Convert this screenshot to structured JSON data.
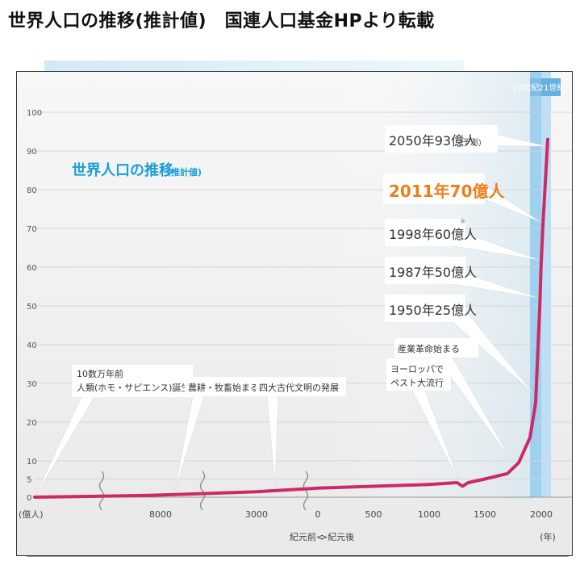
{
  "header": {
    "title": "世界人口の推移(推計値)　国連人口基金HPより転載"
  },
  "chart_data": {
    "type": "line",
    "title": "世界人口の推移",
    "title_note": "(推計値)",
    "ylabel": "(億人)",
    "xlabel_left": "紀元前<",
    "xlabel_right": ">紀元後",
    "x_unit": "(年)",
    "ylim": [
      0,
      100
    ],
    "y_ticks": [
      0,
      5,
      10,
      20,
      30,
      40,
      50,
      60,
      70,
      80,
      90,
      100
    ],
    "x_ticks": [
      "8000",
      "3000",
      "0",
      "500",
      "1000",
      "1500",
      "2000"
    ],
    "century_labels": [
      "20世紀",
      "21世紀"
    ],
    "series": [
      {
        "values_x": [
          "-100000",
          "-8000",
          "-3000",
          "0",
          "500",
          "1000",
          "1250",
          "1300",
          "1350",
          "1500",
          "1700",
          "1800",
          "1900",
          "1950",
          "1987",
          "1998",
          "2011",
          "2050"
        ],
        "values_y": [
          0,
          0.5,
          1.5,
          2.5,
          3.0,
          3.5,
          4.0,
          3.0,
          4.0,
          5.0,
          6.5,
          9.5,
          16,
          25,
          50,
          60,
          70,
          93
        ]
      }
    ],
    "annotations": [
      {
        "id": "sapiens",
        "lines": [
          "10数万年前",
          "人類(ホモ・サピエンス)誕生"
        ]
      },
      {
        "id": "agri",
        "lines": [
          "農耕・牧畜始まる"
        ]
      },
      {
        "id": "civ",
        "lines": [
          "四大古代文明の発展"
        ]
      },
      {
        "id": "plague",
        "lines": [
          "ヨーロッパで",
          "ペスト大流行"
        ]
      },
      {
        "id": "industrial",
        "lines": [
          "産業革命始まる"
        ]
      },
      {
        "id": "p1950",
        "lines": [
          "1950年25億人"
        ]
      },
      {
        "id": "p1987",
        "lines": [
          "1987年50億人"
        ]
      },
      {
        "id": "p1998",
        "lines": [
          "1998年60億人"
        ],
        "mark": "※"
      },
      {
        "id": "p2011",
        "lines": [
          "2011年70億人"
        ],
        "highlight": true
      },
      {
        "id": "p2050",
        "lines": [
          "2050年93億人"
        ],
        "note": "(予測)"
      }
    ]
  },
  "colors": {
    "line": "#cc2a66",
    "title_blue": "#1a9fd6",
    "highlight": "#ef7d1a",
    "century_band": "#9fd0ee"
  }
}
